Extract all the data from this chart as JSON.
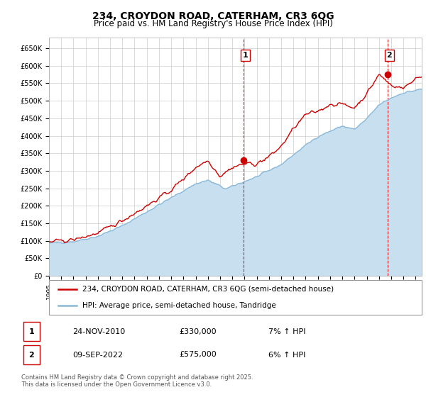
{
  "title": "234, CROYDON ROAD, CATERHAM, CR3 6QG",
  "subtitle": "Price paid vs. HM Land Registry's House Price Index (HPI)",
  "ylabel_ticks": [
    "£0",
    "£50K",
    "£100K",
    "£150K",
    "£200K",
    "£250K",
    "£300K",
    "£350K",
    "£400K",
    "£450K",
    "£500K",
    "£550K",
    "£600K",
    "£650K"
  ],
  "ytick_values": [
    0,
    50000,
    100000,
    150000,
    200000,
    250000,
    300000,
    350000,
    400000,
    450000,
    500000,
    550000,
    600000,
    650000
  ],
  "xlim": [
    1995.0,
    2025.5
  ],
  "ylim": [
    0,
    680000
  ],
  "price_color": "#cc0000",
  "hpi_color": "#88b8d8",
  "hpi_fill_color": "#c8dff0",
  "marker1_date": 2010.9,
  "marker1_price": 330000,
  "marker2_date": 2022.7,
  "marker2_price": 575000,
  "legend_entry1": "234, CROYDON ROAD, CATERHAM, CR3 6QG (semi-detached house)",
  "legend_entry2": "HPI: Average price, semi-detached house, Tandridge",
  "table_row1": [
    "1",
    "24-NOV-2010",
    "£330,000",
    "7% ↑ HPI"
  ],
  "table_row2": [
    "2",
    "09-SEP-2022",
    "£575,000",
    "6% ↑ HPI"
  ],
  "footnote": "Contains HM Land Registry data © Crown copyright and database right 2025.\nThis data is licensed under the Open Government Licence v3.0.",
  "background_color": "#ffffff",
  "grid_color": "#cccccc",
  "plot_bg_color": "#ffffff",
  "hpi_waypoints_t": [
    1995,
    1997,
    1999,
    2001,
    2003,
    2005,
    2007,
    2008,
    2009.5,
    2010.5,
    2012,
    2014,
    2016,
    2017,
    2019,
    2020,
    2021,
    2022,
    2023,
    2024,
    2025.5
  ],
  "hpi_waypoints_v": [
    93000,
    98000,
    113000,
    143000,
    183000,
    223000,
    263000,
    273000,
    248000,
    263000,
    283000,
    318000,
    373000,
    398000,
    428000,
    418000,
    448000,
    488000,
    508000,
    523000,
    533000
  ],
  "price_waypoints_t": [
    1995,
    1997,
    1999,
    2001,
    2003,
    2005,
    2007,
    2008,
    2009,
    2010,
    2011,
    2012,
    2013,
    2014,
    2015,
    2016,
    2017,
    2018,
    2019,
    2020,
    2021,
    2022,
    2022.5,
    2023,
    2024,
    2025,
    2025.5
  ],
  "price_waypoints_v": [
    97000,
    103000,
    122000,
    158000,
    200000,
    245000,
    310000,
    330000,
    285000,
    310000,
    320000,
    320000,
    340000,
    370000,
    420000,
    460000,
    470000,
    490000,
    490000,
    480000,
    520000,
    575000,
    560000,
    545000,
    535000,
    565000,
    570000
  ]
}
